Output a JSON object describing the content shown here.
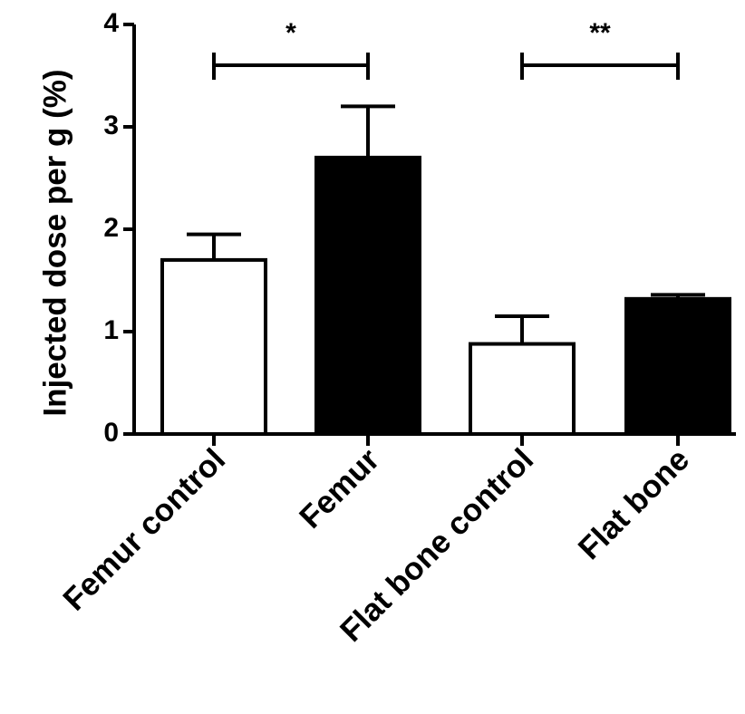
{
  "chart_data": {
    "type": "bar",
    "title": "",
    "xlabel": "",
    "ylabel": "Injected dose per g (%)",
    "ylim": [
      0,
      4
    ],
    "yticks": [
      0,
      1,
      2,
      3,
      4
    ],
    "grid": false,
    "legend": "none",
    "categories": [
      "Femur control",
      "Femur",
      "Flat bone control",
      "Flat bone"
    ],
    "values": [
      1.7,
      2.7,
      0.88,
      1.32
    ],
    "errors": [
      0.25,
      0.5,
      0.27,
      0.04
    ],
    "bar_colors": [
      "#ffffff",
      "#000000",
      "#ffffff",
      "#000000"
    ],
    "significance": [
      {
        "from": 0,
        "to": 1,
        "label": "*",
        "y": 3.5
      },
      {
        "from": 2,
        "to": 3,
        "label": "**",
        "y": 3.5
      }
    ]
  }
}
